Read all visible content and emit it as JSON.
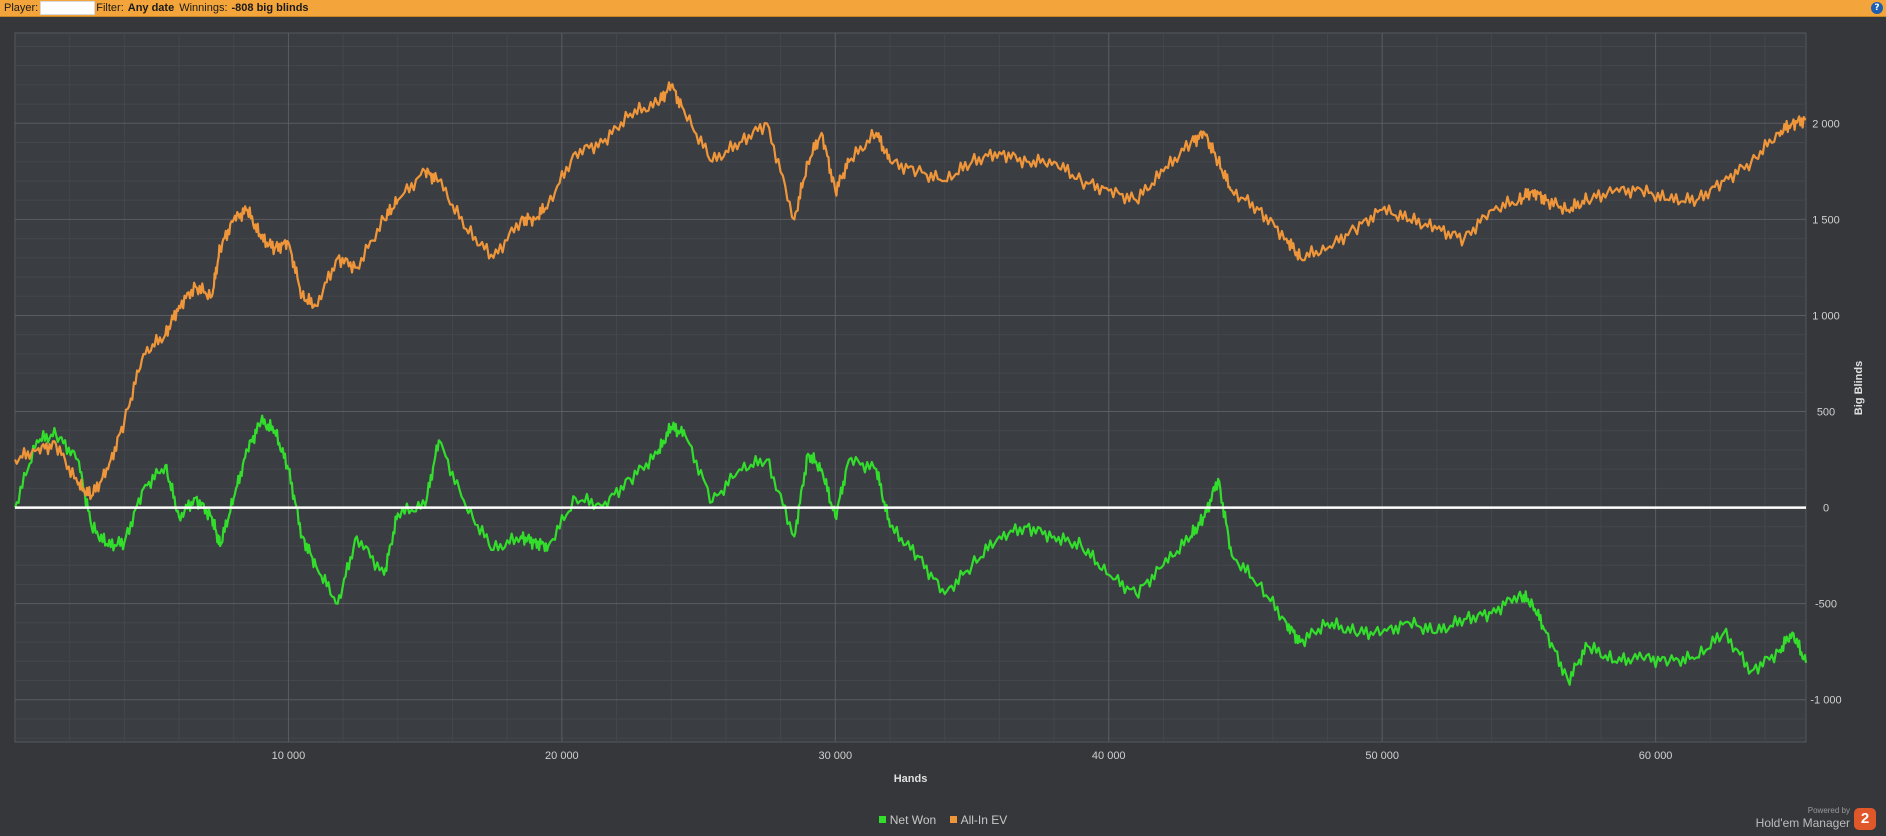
{
  "header": {
    "player_label": "Player:",
    "filter_label": "Filter:",
    "filter_value": "Any date",
    "winnings_label": "Winnings:",
    "winnings_value": "-808 big blinds",
    "help_icon": "help-icon"
  },
  "chart_data": {
    "type": "line",
    "xlabel": "Hands",
    "ylabel": "Big Blinds",
    "xlim": [
      0,
      65500
    ],
    "ylim": [
      -1220,
      2470
    ],
    "x_ticks": [
      10000,
      20000,
      30000,
      40000,
      50000,
      60000
    ],
    "x_tick_labels": [
      "10 000",
      "20 000",
      "30 000",
      "40 000",
      "50 000",
      "60 000"
    ],
    "y_ticks": [
      -1000,
      -500,
      0,
      500,
      1000,
      1500,
      2000
    ],
    "y_tick_labels": [
      "-1 000",
      "-500",
      "0",
      "500",
      "1 000",
      "1 500",
      "2 000"
    ],
    "grid": true,
    "zero_line": true,
    "legend_position": "bottom-center",
    "series": [
      {
        "name": "Net Won",
        "color": "#33dd2c",
        "x": [
          0,
          800,
          1500,
          2300,
          2800,
          3400,
          4000,
          4700,
          5500,
          6000,
          6600,
          7200,
          7500,
          8000,
          8500,
          9000,
          9500,
          10000,
          10500,
          11000,
          11800,
          12500,
          13500,
          14000,
          15000,
          15500,
          16500,
          17500,
          18500,
          19000,
          19500,
          20500,
          21500,
          22500,
          23500,
          24000,
          24500,
          25500,
          26500,
          27500,
          28500,
          29000,
          29500,
          30000,
          30500,
          31500,
          32000,
          33000,
          34000,
          35000,
          36000,
          37000,
          38000,
          39000,
          40000,
          41000,
          42000,
          43000,
          43500,
          44000,
          44500,
          45500,
          46500,
          47000,
          48000,
          49000,
          50000,
          51000,
          52000,
          53000,
          54000,
          55000,
          55500,
          56000,
          56800,
          57500,
          58500,
          59500,
          60500,
          61500,
          62500,
          63500,
          64500,
          65000,
          65500
        ],
        "values": [
          0,
          350,
          380,
          250,
          -100,
          -200,
          -180,
          100,
          220,
          -50,
          50,
          -50,
          -200,
          50,
          300,
          450,
          400,
          200,
          -150,
          -300,
          -500,
          -150,
          -350,
          -30,
          10,
          350,
          0,
          -220,
          -150,
          -180,
          -200,
          50,
          10,
          150,
          280,
          420,
          380,
          30,
          200,
          250,
          -150,
          280,
          200,
          -50,
          250,
          200,
          -100,
          -250,
          -450,
          -300,
          -150,
          -100,
          -150,
          -200,
          -350,
          -450,
          -300,
          -150,
          -50,
          150,
          -250,
          -400,
          -600,
          -700,
          -600,
          -650,
          -650,
          -600,
          -650,
          -580,
          -550,
          -450,
          -500,
          -650,
          -900,
          -720,
          -800,
          -780,
          -800,
          -780,
          -650,
          -850,
          -750,
          -650,
          -808
        ]
      },
      {
        "name": "All-In EV",
        "color": "#f0963a",
        "x": [
          0,
          800,
          1500,
          2300,
          2800,
          3400,
          4000,
          4700,
          5500,
          6000,
          6600,
          7200,
          7500,
          8000,
          8500,
          9000,
          9500,
          10000,
          10500,
          11000,
          11800,
          12500,
          13500,
          14000,
          15000,
          15500,
          16500,
          17500,
          18500,
          19000,
          19500,
          20500,
          21500,
          22500,
          23500,
          24000,
          24500,
          25500,
          26500,
          27500,
          28500,
          29000,
          29500,
          30000,
          30500,
          31500,
          32000,
          33000,
          34000,
          35000,
          36000,
          37000,
          38000,
          39000,
          40000,
          41000,
          42000,
          43000,
          43500,
          44000,
          44500,
          45500,
          46500,
          47000,
          48000,
          49000,
          50000,
          51000,
          52000,
          53000,
          54000,
          55000,
          55500,
          56000,
          56800,
          57500,
          58500,
          59500,
          60500,
          61500,
          62500,
          63500,
          64500,
          65000,
          65500
        ],
        "values": [
          250,
          300,
          330,
          120,
          60,
          200,
          450,
          800,
          900,
          1050,
          1150,
          1100,
          1350,
          1500,
          1550,
          1400,
          1350,
          1380,
          1100,
          1050,
          1300,
          1250,
          1500,
          1600,
          1750,
          1700,
          1450,
          1300,
          1500,
          1500,
          1580,
          1850,
          1900,
          2050,
          2100,
          2200,
          2050,
          1800,
          1900,
          2000,
          1500,
          1800,
          1950,
          1650,
          1800,
          1950,
          1800,
          1750,
          1700,
          1800,
          1850,
          1800,
          1800,
          1700,
          1650,
          1600,
          1750,
          1900,
          1950,
          1800,
          1650,
          1550,
          1400,
          1300,
          1350,
          1450,
          1550,
          1500,
          1450,
          1400,
          1550,
          1600,
          1650,
          1600,
          1550,
          1600,
          1650,
          1650,
          1600,
          1600,
          1700,
          1800,
          1950,
          2000,
          2020
        ]
      }
    ]
  },
  "branding": {
    "powered_by": "Powered by",
    "product": "Hold'em Manager",
    "logo_text": "2"
  }
}
